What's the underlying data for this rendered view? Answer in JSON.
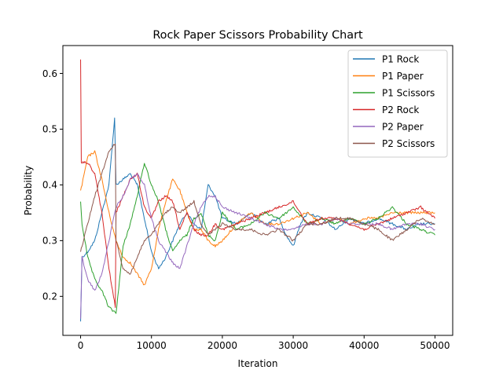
{
  "chart_data": {
    "type": "line",
    "title": "Rock Paper Scissors Probability Chart",
    "xlabel": "Iteration",
    "ylabel": "Probability",
    "xlim": [
      -2500,
      52500
    ],
    "ylim": [
      0.13,
      0.65
    ],
    "xticks": [
      0,
      10000,
      20000,
      30000,
      40000,
      50000
    ],
    "yticks": [
      0.2,
      0.3,
      0.4,
      0.5,
      0.6
    ],
    "xtick_labels": [
      "0",
      "10000",
      "20000",
      "30000",
      "40000",
      "50000"
    ],
    "ytick_labels": [
      "0.2",
      "0.3",
      "0.4",
      "0.5",
      "0.6"
    ],
    "grid": false,
    "legend_position": "top-right",
    "series": [
      {
        "name": "P1 Rock",
        "color": "#1f77b4",
        "x": [
          0,
          200,
          1000,
          2000,
          3000,
          4000,
          4800,
          5000,
          6000,
          7000,
          8000,
          9000,
          10000,
          11000,
          12000,
          13000,
          14000,
          15000,
          16000,
          17000,
          18000,
          19000,
          20000,
          22000,
          24000,
          26000,
          28000,
          29000,
          30000,
          31000,
          32000,
          34000,
          36000,
          38000,
          40000,
          42000,
          44000,
          46000,
          48000,
          50000
        ],
        "y": [
          0.155,
          0.27,
          0.28,
          0.3,
          0.35,
          0.4,
          0.52,
          0.4,
          0.41,
          0.42,
          0.4,
          0.34,
          0.28,
          0.25,
          0.27,
          0.3,
          0.33,
          0.35,
          0.33,
          0.32,
          0.4,
          0.38,
          0.34,
          0.33,
          0.35,
          0.33,
          0.34,
          0.31,
          0.29,
          0.33,
          0.35,
          0.34,
          0.32,
          0.34,
          0.33,
          0.34,
          0.33,
          0.32,
          0.33,
          0.33
        ]
      },
      {
        "name": "P1 Paper",
        "color": "#ff7f0e",
        "x": [
          0,
          200,
          1000,
          2000,
          3000,
          4000,
          5000,
          6000,
          7000,
          8000,
          9000,
          10000,
          11000,
          12000,
          13000,
          14000,
          15000,
          16000,
          17000,
          18000,
          19000,
          20000,
          22000,
          24000,
          26000,
          28000,
          30000,
          32000,
          34000,
          36000,
          38000,
          40000,
          42000,
          44000,
          46000,
          48000,
          50000
        ],
        "y": [
          0.39,
          0.4,
          0.45,
          0.46,
          0.41,
          0.35,
          0.3,
          0.27,
          0.26,
          0.24,
          0.22,
          0.25,
          0.32,
          0.37,
          0.41,
          0.39,
          0.35,
          0.32,
          0.32,
          0.3,
          0.29,
          0.3,
          0.33,
          0.35,
          0.33,
          0.33,
          0.34,
          0.35,
          0.33,
          0.34,
          0.33,
          0.34,
          0.34,
          0.35,
          0.35,
          0.35,
          0.35
        ]
      },
      {
        "name": "P1 Scissors",
        "color": "#2ca02c",
        "x": [
          0,
          200,
          1000,
          2000,
          3000,
          4000,
          5000,
          6000,
          7000,
          8000,
          9000,
          10000,
          11000,
          12000,
          13000,
          14000,
          15000,
          16000,
          17000,
          18000,
          19000,
          20000,
          22000,
          24000,
          26000,
          28000,
          30000,
          32000,
          34000,
          36000,
          38000,
          40000,
          42000,
          44000,
          46000,
          48000,
          50000
        ],
        "y": [
          0.37,
          0.33,
          0.27,
          0.23,
          0.21,
          0.18,
          0.17,
          0.29,
          0.33,
          0.38,
          0.44,
          0.4,
          0.37,
          0.32,
          0.28,
          0.3,
          0.31,
          0.34,
          0.35,
          0.31,
          0.3,
          0.35,
          0.32,
          0.33,
          0.35,
          0.34,
          0.36,
          0.33,
          0.34,
          0.33,
          0.34,
          0.33,
          0.34,
          0.36,
          0.33,
          0.32,
          0.31
        ]
      },
      {
        "name": "P2 Rock",
        "color": "#d62728",
        "x": [
          0,
          100,
          200,
          1000,
          2000,
          3000,
          4000,
          4900,
          5000,
          6000,
          7000,
          8000,
          9000,
          10000,
          11000,
          12000,
          13000,
          14000,
          15000,
          16000,
          17000,
          18000,
          19000,
          20000,
          22000,
          24000,
          26000,
          28000,
          30000,
          32000,
          34000,
          36000,
          38000,
          40000,
          42000,
          44000,
          46000,
          48000,
          50000
        ],
        "y": [
          0.625,
          0.44,
          0.44,
          0.44,
          0.42,
          0.35,
          0.25,
          0.18,
          0.35,
          0.38,
          0.41,
          0.42,
          0.36,
          0.34,
          0.37,
          0.38,
          0.37,
          0.32,
          0.35,
          0.32,
          0.31,
          0.31,
          0.33,
          0.32,
          0.33,
          0.34,
          0.35,
          0.36,
          0.37,
          0.33,
          0.34,
          0.34,
          0.33,
          0.32,
          0.33,
          0.34,
          0.35,
          0.36,
          0.34
        ]
      },
      {
        "name": "P2 Paper",
        "color": "#9467bd",
        "x": [
          0,
          200,
          1000,
          2000,
          3000,
          4000,
          5000,
          6000,
          7000,
          8000,
          9000,
          10000,
          11000,
          12000,
          13000,
          14000,
          15000,
          16000,
          17000,
          18000,
          19000,
          20000,
          22000,
          24000,
          26000,
          28000,
          30000,
          32000,
          34000,
          36000,
          38000,
          40000,
          42000,
          44000,
          46000,
          48000,
          50000
        ],
        "y": [
          0.16,
          0.27,
          0.23,
          0.21,
          0.24,
          0.3,
          0.36,
          0.38,
          0.41,
          0.42,
          0.4,
          0.34,
          0.3,
          0.28,
          0.26,
          0.25,
          0.29,
          0.33,
          0.36,
          0.38,
          0.38,
          0.36,
          0.35,
          0.34,
          0.33,
          0.32,
          0.32,
          0.33,
          0.33,
          0.34,
          0.33,
          0.33,
          0.33,
          0.32,
          0.33,
          0.33,
          0.32
        ]
      },
      {
        "name": "P2 Scissors",
        "color": "#8c564b",
        "x": [
          0,
          200,
          1000,
          2000,
          3000,
          4000,
          4900,
          5000,
          6000,
          7000,
          8000,
          9000,
          10000,
          11000,
          12000,
          13000,
          14000,
          15000,
          16000,
          17000,
          18000,
          19000,
          20000,
          22000,
          24000,
          26000,
          28000,
          30000,
          32000,
          34000,
          36000,
          38000,
          40000,
          42000,
          44000,
          46000,
          48000,
          50000
        ],
        "y": [
          0.28,
          0.29,
          0.33,
          0.38,
          0.42,
          0.46,
          0.475,
          0.3,
          0.25,
          0.24,
          0.27,
          0.3,
          0.31,
          0.33,
          0.35,
          0.36,
          0.35,
          0.36,
          0.37,
          0.33,
          0.31,
          0.32,
          0.33,
          0.32,
          0.32,
          0.31,
          0.32,
          0.3,
          0.33,
          0.33,
          0.34,
          0.34,
          0.33,
          0.32,
          0.3,
          0.32,
          0.34,
          0.33
        ]
      }
    ]
  }
}
